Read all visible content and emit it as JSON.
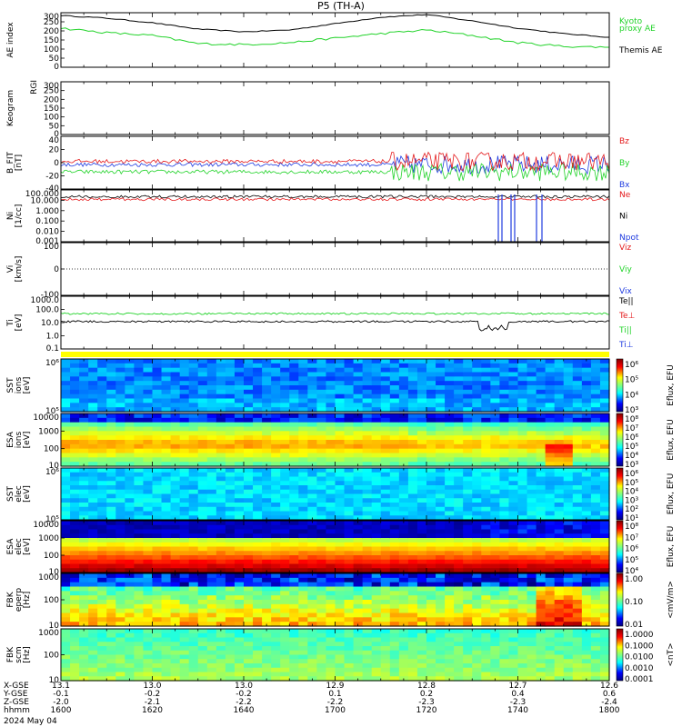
{
  "title": "P5 (TH-A)",
  "date_label": "2024 May 04",
  "colors": {
    "black": "#000000",
    "red": "#e41a1c",
    "green": "#22d32a",
    "blue": "#1f3be0",
    "yellow": "#ffff00",
    "white": "#ffffff"
  },
  "chart_data": [
    {
      "type": "line",
      "name": "ae-index",
      "ylabel": "AE index",
      "yticks": [
        "300",
        "250",
        "200",
        "150",
        "100",
        "50",
        "0"
      ],
      "ylim": [
        0,
        300
      ],
      "legend": [
        {
          "text": "Kyoto",
          "color": "#22d32a"
        },
        {
          "text": "proxy AE",
          "color": "#22d32a"
        },
        {
          "text": "Themis AE",
          "color": "#000000"
        }
      ],
      "x": [
        1600,
        1610,
        1620,
        1630,
        1640,
        1650,
        1700,
        1710,
        1720,
        1730,
        1740,
        1750,
        1800
      ],
      "series": [
        {
          "name": "Themis AE",
          "color": "#000000",
          "values": [
            285,
            270,
            245,
            210,
            195,
            205,
            240,
            275,
            290,
            255,
            215,
            185,
            165
          ]
        },
        {
          "name": "Kyoto",
          "color": "#22d32a",
          "values": [
            215,
            190,
            175,
            130,
            125,
            135,
            160,
            185,
            205,
            175,
            135,
            115,
            110
          ]
        }
      ]
    },
    {
      "type": "heatmap",
      "name": "keogram",
      "ylabel": "Keogram",
      "ytop": "RGI",
      "yticks": [
        "300",
        "250",
        "200",
        "150",
        "100",
        "50",
        "0"
      ]
    },
    {
      "type": "line",
      "name": "b-field",
      "ylabel": "B_FIT",
      "ylabel2": "[nT]",
      "yticks": [
        "40",
        "20",
        "0",
        "-20",
        "-40"
      ],
      "ylim": [
        -40,
        40
      ],
      "legend": [
        {
          "text": "Bz",
          "color": "#e41a1c"
        },
        {
          "text": "By",
          "color": "#22d32a"
        },
        {
          "text": "Bx",
          "color": "#1f3be0"
        }
      ]
    },
    {
      "type": "line",
      "name": "density",
      "ylabel": "Ni",
      "ylabel2": "[1/cc]",
      "yticks": [
        "100.000",
        "10.000",
        "1.000",
        "0.100",
        "0.010",
        "0.001"
      ],
      "legend": [
        {
          "text": "Ne",
          "color": "#e41a1c"
        },
        {
          "text": "Ni",
          "color": "#000000"
        },
        {
          "text": "Npot",
          "color": "#1f3be0"
        }
      ]
    },
    {
      "type": "line",
      "name": "velocity",
      "ylabel": "Vi",
      "ylabel2": "[km/s]",
      "yticks": [
        "100",
        "0",
        "-100"
      ],
      "legend": [
        {
          "text": "Viz",
          "color": "#e41a1c"
        },
        {
          "text": "Viy",
          "color": "#22d32a"
        },
        {
          "text": "Vix",
          "color": "#1f3be0"
        }
      ]
    },
    {
      "type": "line",
      "name": "temperature",
      "ylabel": "Ti",
      "ylabel2": "[eV]",
      "yticks": [
        "1000.0",
        "100.0",
        "10.0",
        "1.0",
        "0.1"
      ],
      "legend": [
        {
          "text": "Te||",
          "color": "#000000"
        },
        {
          "text": "Te⊥",
          "color": "#e41a1c"
        },
        {
          "text": "Ti||",
          "color": "#22d32a"
        },
        {
          "text": "Ti⊥",
          "color": "#1f3be0"
        }
      ]
    },
    {
      "type": "heatmap",
      "name": "sst-ion",
      "ylabel": "SST",
      "ylabel2": "[eV]",
      "ylabel3": "ions",
      "yticks": [
        "10⁶",
        "10⁵"
      ],
      "cbar_ticks": [
        "10⁶",
        "10⁵",
        "10⁴",
        "10³"
      ],
      "cbar_label": "Eflux, EFU"
    },
    {
      "type": "heatmap",
      "name": "esa-ion",
      "ylabel": "ESA",
      "ylabel2": "[eV]",
      "ylabel3": "ions",
      "yticks": [
        "10000",
        "1000",
        "100",
        "10"
      ],
      "cbar_ticks": [
        "10⁸",
        "10⁷",
        "10⁶",
        "10⁵",
        "10⁴",
        "10³"
      ],
      "cbar_label": "Eflux, EFU"
    },
    {
      "type": "heatmap",
      "name": "sst-elec",
      "ylabel": "SST",
      "ylabel2": "[eV]",
      "ylabel3": "elec",
      "yticks": [
        "10⁶",
        "10⁵"
      ],
      "cbar_ticks": [
        "10⁶",
        "10⁵",
        "10⁴",
        "10³",
        "10²",
        "10¹"
      ],
      "cbar_label": "Eflux, EFU"
    },
    {
      "type": "heatmap",
      "name": "esa-elec",
      "ylabel": "ESA",
      "ylabel2": "[eV]",
      "ylabel3": "elec",
      "yticks": [
        "10000",
        "1000",
        "100",
        "10"
      ],
      "cbar_ticks": [
        "10⁸",
        "10⁷",
        "10⁶",
        "10⁵",
        "10⁴"
      ],
      "cbar_label": "Eflux, EFU"
    },
    {
      "type": "heatmap",
      "name": "fbk-e",
      "ylabel": "FBK",
      "ylabel2": "[Hz]",
      "ylabel3": "eperp",
      "yticks": [
        "1000",
        "100",
        "10"
      ],
      "cbar_ticks": [
        "1.00",
        "0.10",
        "0.01"
      ],
      "cbar_label": "<mV/m>"
    },
    {
      "type": "heatmap",
      "name": "fbk-b",
      "ylabel": "FBK",
      "ylabel2": "[Hz]",
      "ylabel3": "scm",
      "yticks": [
        "1000",
        "100",
        "10"
      ],
      "cbar_ticks": [
        "1.0000",
        "0.1000",
        "0.0100",
        "0.0010",
        "0.0001"
      ],
      "cbar_label": "<nT>"
    }
  ],
  "x_axis": {
    "row_labels": [
      "X-GSE",
      "Y-GSE",
      "Z-GSE",
      "hhmm"
    ],
    "columns": [
      {
        "values": [
          "13.1",
          "-0.1",
          "-2.0",
          "1600"
        ]
      },
      {
        "values": [
          "13.0",
          "-0.2",
          "-2.1",
          "1620"
        ]
      },
      {
        "values": [
          "13.0",
          "-0.2",
          "-2.2",
          "1640"
        ]
      },
      {
        "values": [
          "12.9",
          "0.1",
          "-2.2",
          "1700"
        ]
      },
      {
        "values": [
          "12.8",
          "0.2",
          "-2.3",
          "1720"
        ]
      },
      {
        "values": [
          "12.7",
          "0.4",
          "-2.3",
          "1740"
        ]
      },
      {
        "values": [
          "12.6",
          "0.6",
          "-2.4",
          "1800"
        ]
      }
    ]
  }
}
